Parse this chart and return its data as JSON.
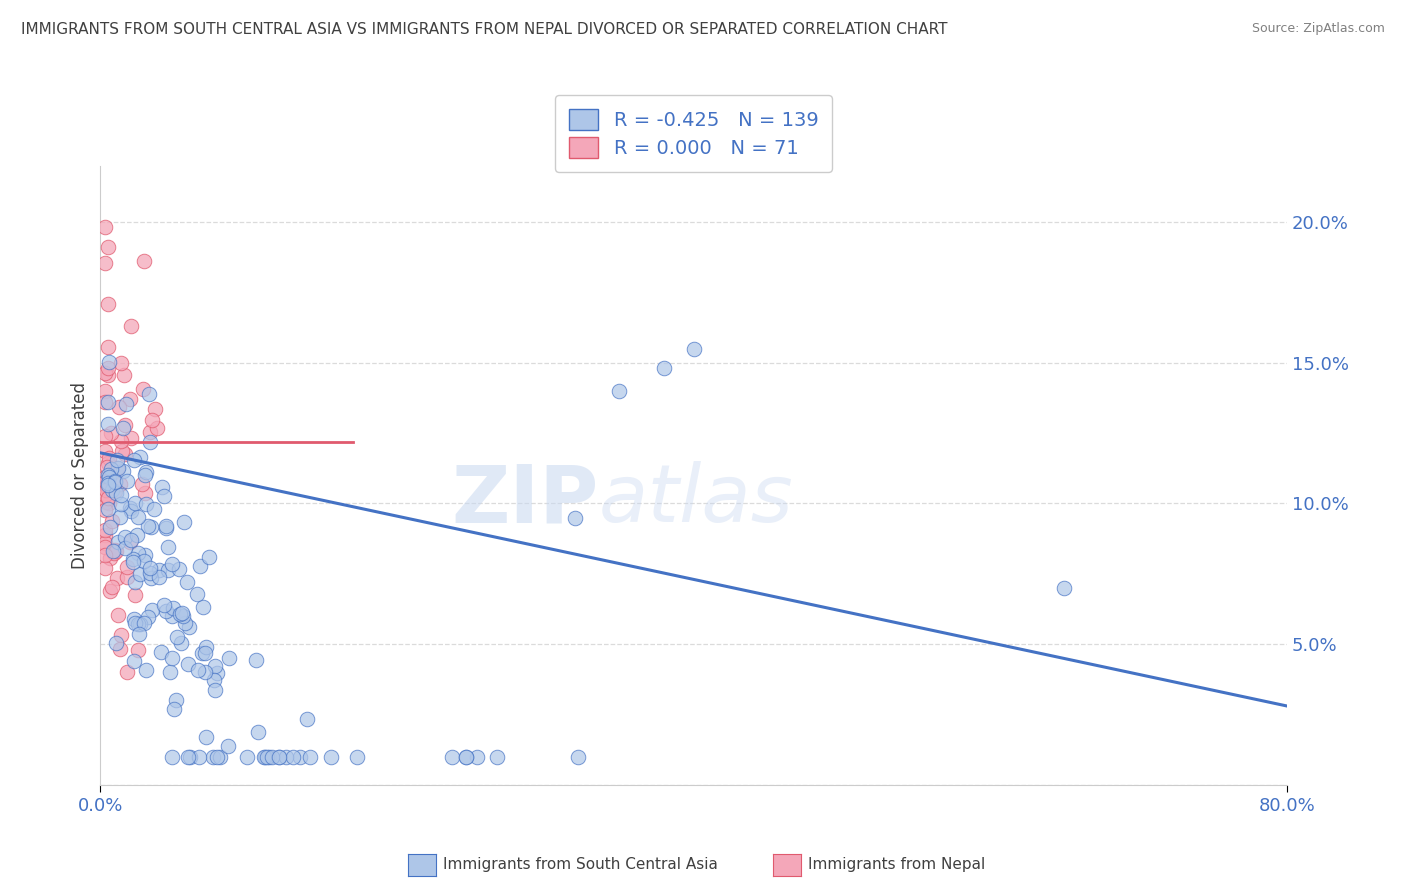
{
  "title": "IMMIGRANTS FROM SOUTH CENTRAL ASIA VS IMMIGRANTS FROM NEPAL DIVORCED OR SEPARATED CORRELATION CHART",
  "source": "Source: ZipAtlas.com",
  "ylabel": "Divorced or Separated",
  "legend_label1": "Immigrants from South Central Asia",
  "legend_label2": "Immigrants from Nepal",
  "r1": -0.425,
  "n1": 139,
  "r2": 0.0,
  "n2": 71,
  "color1": "#aec6e8",
  "color2": "#f4a7b9",
  "line1_color": "#4472c4",
  "line2_color": "#e05a6e",
  "bg_color": "#ffffff",
  "grid_color": "#d3d3d3",
  "title_color": "#404040",
  "axis_label_color": "#4472c4",
  "xlim": [
    0.0,
    0.8
  ],
  "ylim": [
    0.0,
    0.22
  ],
  "yticks": [
    0.0,
    0.05,
    0.1,
    0.15,
    0.2
  ],
  "watermark_zip": "ZIP",
  "watermark_atlas": "atlas",
  "blue_trend_x0": 0.0,
  "blue_trend_y0": 0.118,
  "blue_trend_x1": 0.8,
  "blue_trend_y1": 0.028,
  "pink_trend_y": 0.122
}
